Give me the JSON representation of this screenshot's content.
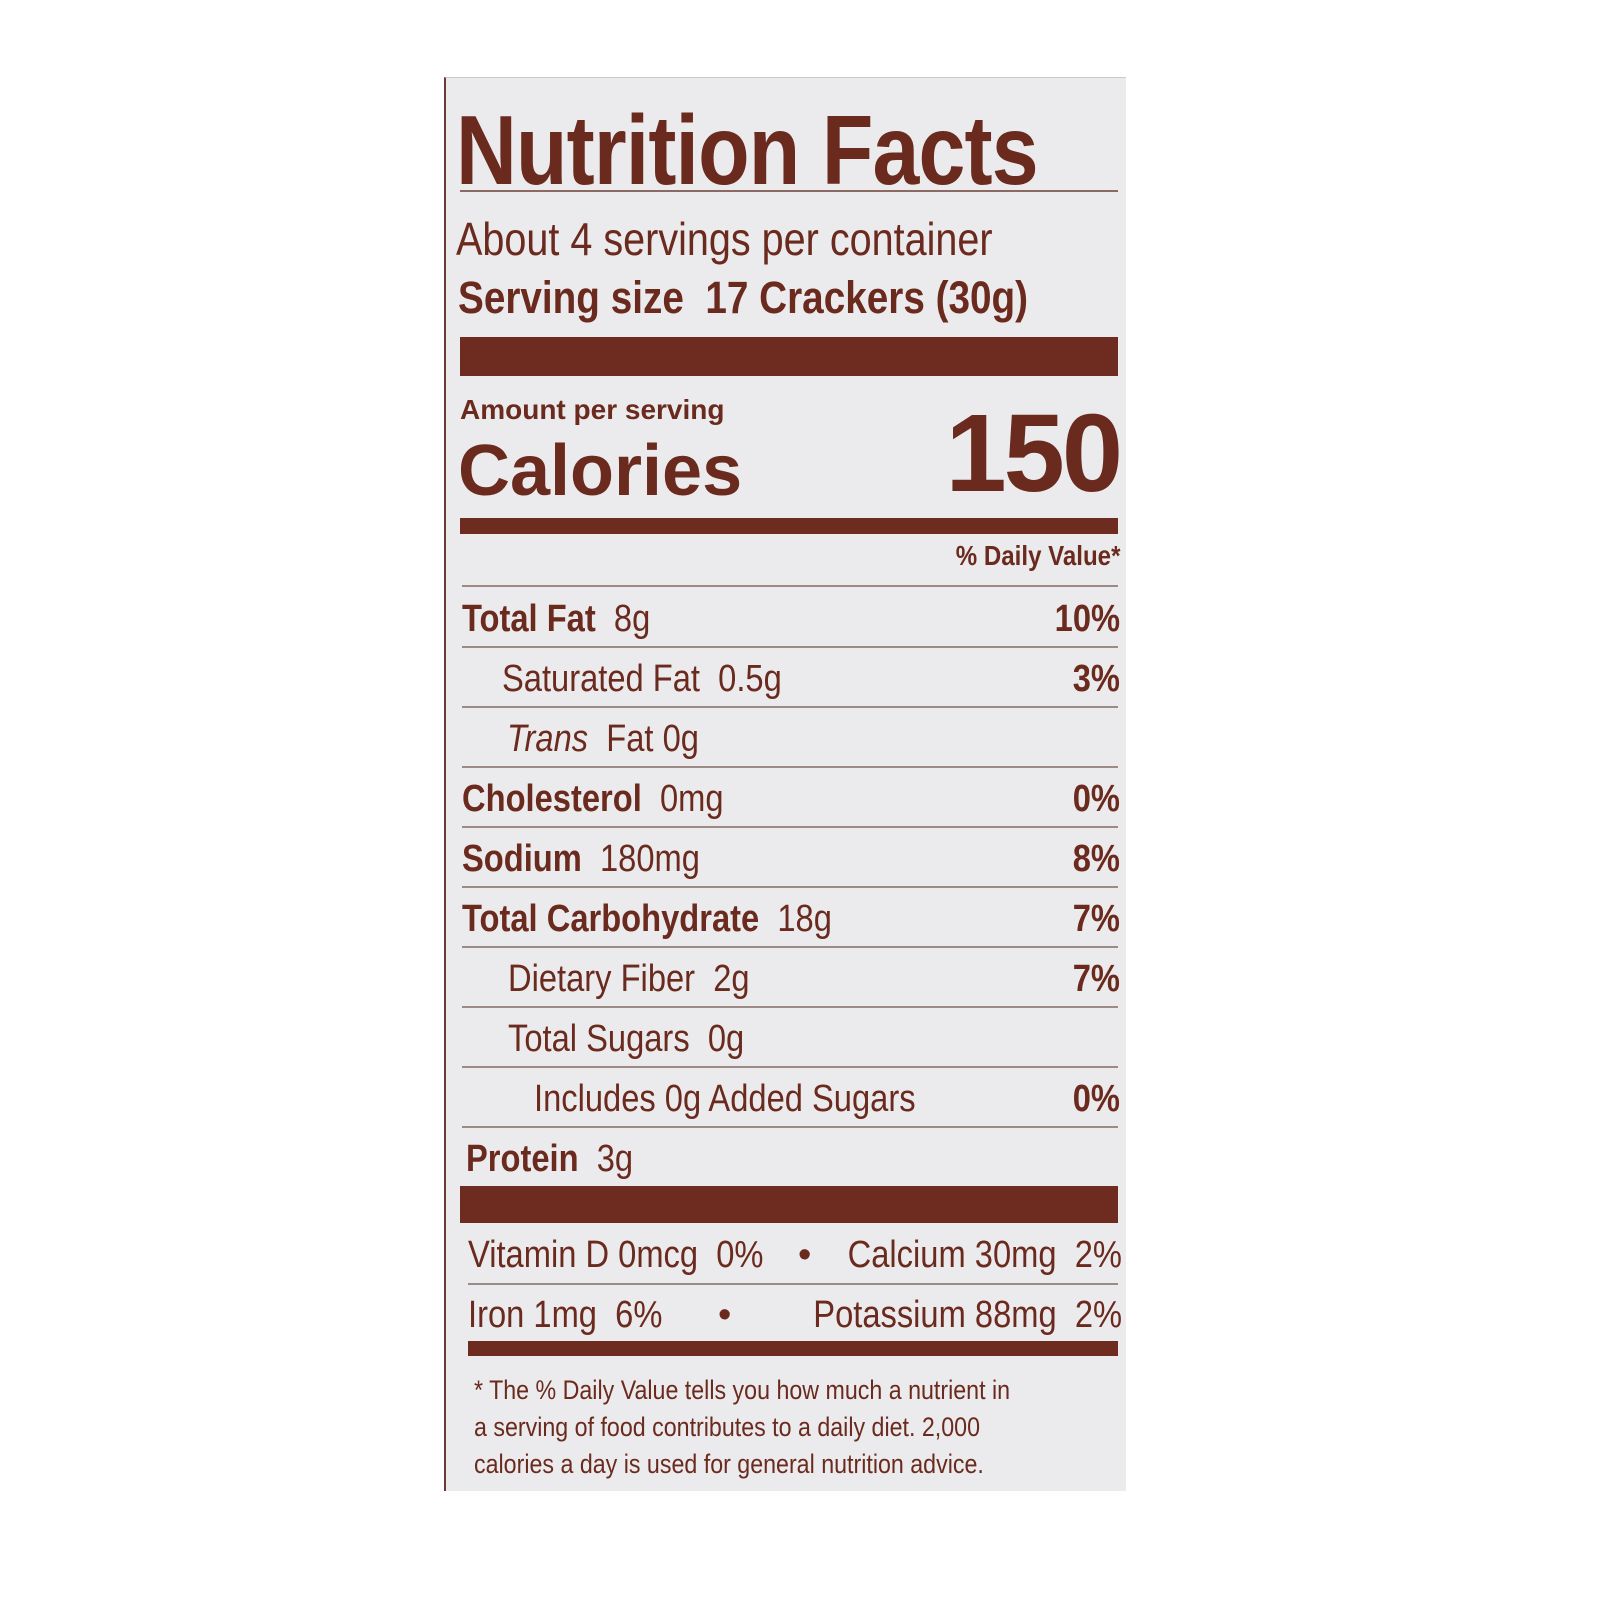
{
  "label": {
    "title": "Nutrition Facts",
    "servings_per_container": "About 4 servings per container",
    "serving_size_label": "Serving size",
    "serving_size_value": "17 Crackers (30g)",
    "amount_per_serving": "Amount per serving",
    "calories_label": "Calories",
    "calories_value": "150",
    "daily_value_header": "% Daily Value*",
    "nutrients": [
      {
        "name": "Total Fat",
        "amount": "8g",
        "dv": "10%"
      },
      {
        "name": "Saturated Fat",
        "amount": "0.5g",
        "dv": "3%"
      },
      {
        "name": "Trans",
        "amount": "Fat 0g",
        "dv": ""
      },
      {
        "name": "Cholesterol",
        "amount": "0mg",
        "dv": "0%"
      },
      {
        "name": "Sodium",
        "amount": "180mg",
        "dv": "8%"
      },
      {
        "name": "Total Carbohydrate",
        "amount": "18g",
        "dv": "7%"
      },
      {
        "name": "Dietary Fiber",
        "amount": "2g",
        "dv": "7%"
      },
      {
        "name": "Total Sugars",
        "amount": "0g",
        "dv": ""
      },
      {
        "name": "Includes 0g Added Sugars",
        "amount": "",
        "dv": "0%"
      },
      {
        "name": "Protein",
        "amount": "3g",
        "dv": ""
      }
    ],
    "vitamins": [
      {
        "left": "Vitamin D 0mcg",
        "left_dv": "0%",
        "right": "Calcium 30mg",
        "right_dv": "2%"
      },
      {
        "left": "Iron 1mg",
        "left_dv": "6%",
        "right": "Potassium 88mg",
        "right_dv": "2%"
      }
    ],
    "separator": "•",
    "footnote": "* The % Daily Value tells you how much a nutrient in a serving of food contributes to a daily diet. 2,000 calories a day is used for general nutrition advice.",
    "colors": {
      "ink": "#6b2a1e",
      "panel": "#ebebed",
      "background": "#ffffff"
    }
  }
}
